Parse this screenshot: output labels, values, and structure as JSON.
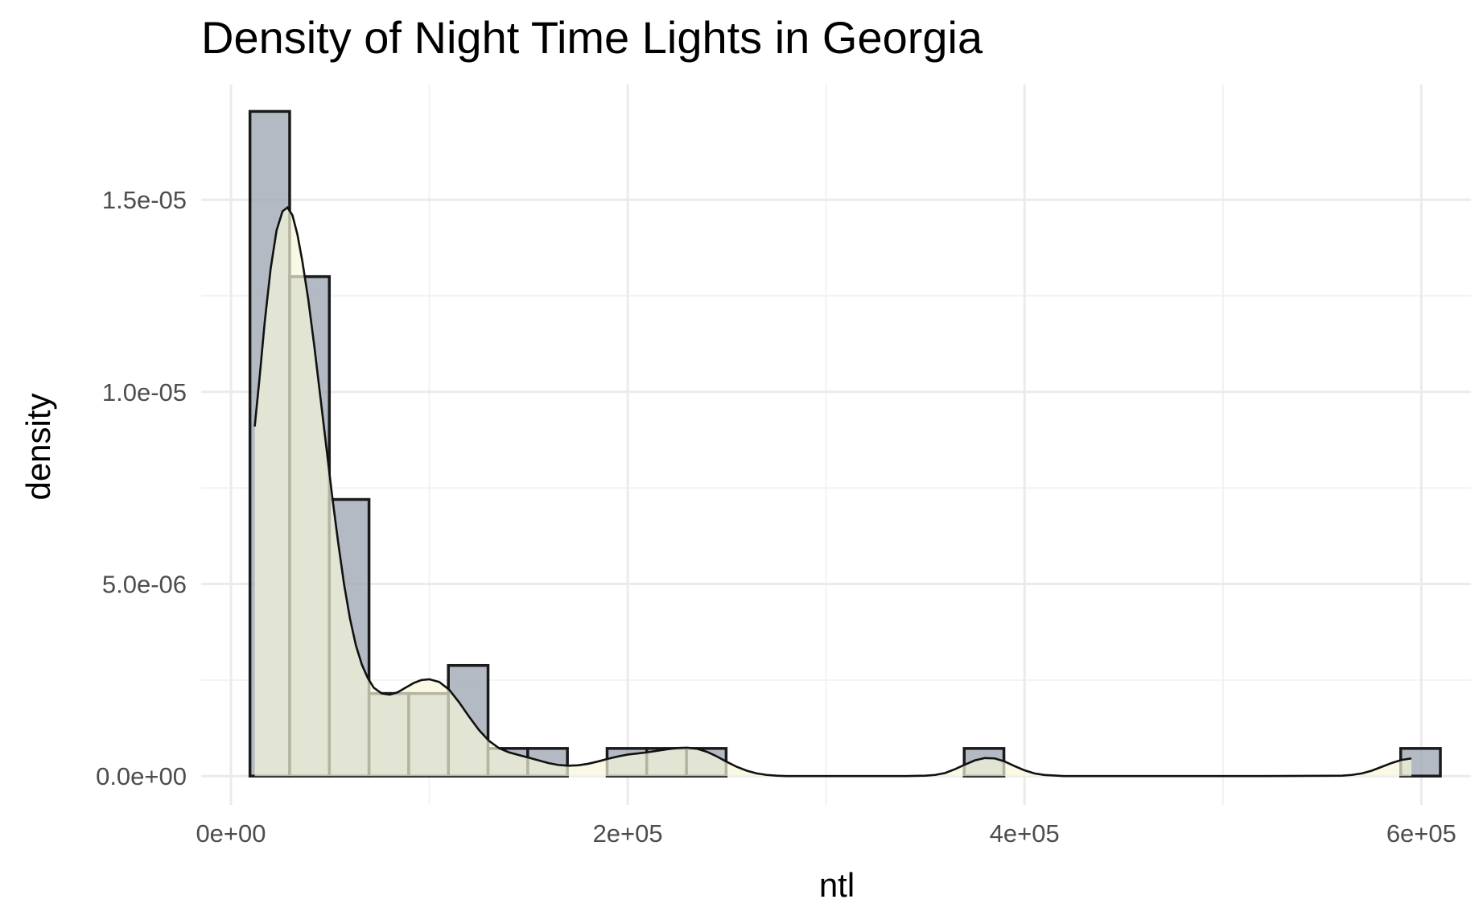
{
  "chart_data": {
    "type": "histogram",
    "title": "Density of Night Time Lights in Georgia",
    "xlabel": "ntl",
    "ylabel": "density",
    "xlim": [
      -15000,
      625000
    ],
    "ylim": [
      -7.5e-07,
      1.8e-05
    ],
    "grid": true,
    "x_ticks": [
      {
        "value": 0,
        "label": "0e+00"
      },
      {
        "value": 200000,
        "label": "2e+05"
      },
      {
        "value": 400000,
        "label": "4e+05"
      },
      {
        "value": 600000,
        "label": "6e+05"
      }
    ],
    "y_ticks": [
      {
        "value": 0,
        "label": "0.0e+00"
      },
      {
        "value": 5e-06,
        "label": "5.0e-06"
      },
      {
        "value": 1e-05,
        "label": "1.0e-05"
      },
      {
        "value": 1.5e-05,
        "label": "1.5e-05"
      }
    ],
    "bins": [
      {
        "x0": 9600,
        "x1": 29600,
        "density": 1.73e-05
      },
      {
        "x0": 29600,
        "x1": 49600,
        "density": 1.3e-05
      },
      {
        "x0": 49600,
        "x1": 69600,
        "density": 7.2e-06
      },
      {
        "x0": 69600,
        "x1": 89600,
        "density": 2.15e-06
      },
      {
        "x0": 89600,
        "x1": 109600,
        "density": 2.15e-06
      },
      {
        "x0": 109600,
        "x1": 129600,
        "density": 2.88e-06
      },
      {
        "x0": 129600,
        "x1": 149600,
        "density": 7.2e-07
      },
      {
        "x0": 149600,
        "x1": 169600,
        "density": 7.2e-07
      },
      {
        "x0": 189600,
        "x1": 209600,
        "density": 7.2e-07
      },
      {
        "x0": 209600,
        "x1": 229600,
        "density": 7.2e-07
      },
      {
        "x0": 229600,
        "x1": 249600,
        "density": 7.2e-07
      },
      {
        "x0": 369600,
        "x1": 389600,
        "density": 7.2e-07
      },
      {
        "x0": 589600,
        "x1": 609600,
        "density": 7.2e-07
      }
    ],
    "density_curve": {
      "x": [
        12000,
        14500,
        17000,
        20000,
        23000,
        26000,
        28500,
        31000,
        33500,
        36000,
        39000,
        42000,
        45000,
        48000,
        51000,
        54000,
        57000,
        60000,
        63000,
        66000,
        69000,
        72000,
        76000,
        80000,
        84000,
        88000,
        92000,
        96000,
        100000,
        105000,
        110000,
        115000,
        120000,
        125000,
        130000,
        135000,
        140000,
        145000,
        150000,
        155000,
        160000,
        165000,
        170000,
        175000,
        180000,
        185000,
        190000,
        195000,
        200000,
        205000,
        210000,
        215000,
        220000,
        225000,
        230000,
        235000,
        240000,
        245000,
        250000,
        255000,
        260000,
        265000,
        270000,
        275000,
        280000,
        290000,
        300000,
        320000,
        340000,
        350000,
        355000,
        360000,
        365000,
        370000,
        375000,
        380000,
        385000,
        390000,
        395000,
        400000,
        405000,
        410000,
        420000,
        440000,
        480000,
        520000,
        560000,
        565000,
        570000,
        575000,
        580000,
        585000,
        590000,
        595000
      ],
      "y": [
        9.1e-06,
        1.04e-05,
        1.18e-05,
        1.32e-05,
        1.42e-05,
        1.47e-05,
        1.48e-05,
        1.46e-05,
        1.41e-05,
        1.34e-05,
        1.24e-05,
        1.12e-05,
        9.9e-06,
        8.6e-06,
        7.3e-06,
        6.1e-06,
        5e-06,
        4.1e-06,
        3.4e-06,
        2.9e-06,
        2.55e-06,
        2.3e-06,
        2.15e-06,
        2.12e-06,
        2.18e-06,
        2.3e-06,
        2.42e-06,
        2.5e-06,
        2.52e-06,
        2.45e-06,
        2.25e-06,
        1.92e-06,
        1.55e-06,
        1.2e-06,
        9.2e-07,
        7.3e-07,
        6.2e-07,
        5.5e-07,
        4.8e-07,
        4.1e-07,
        3.4e-07,
        2.9e-07,
        2.7e-07,
        2.8e-07,
        3.2e-07,
        3.8e-07,
        4.5e-07,
        5.1e-07,
        5.6e-07,
        5.9e-07,
        6.2e-07,
        6.6e-07,
        7e-07,
        7.3e-07,
        7.4e-07,
        7.1e-07,
        6.3e-07,
        5.1e-07,
        3.7e-07,
        2.4e-07,
        1.4e-07,
        7e-08,
        3e-08,
        1e-08,
        0,
        0,
        0,
        0,
        0,
        1e-08,
        3e-08,
        8e-08,
        1.8e-07,
        3e-07,
        4.1e-07,
        4.7e-07,
        4.6e-07,
        3.8e-07,
        2.6e-07,
        1.5e-07,
        7e-08,
        3e-08,
        0,
        0,
        0,
        0,
        1e-08,
        3e-08,
        7e-08,
        1.4e-07,
        2.4e-07,
        3.4e-07,
        4.2e-07,
        4.6e-07
      ]
    }
  }
}
